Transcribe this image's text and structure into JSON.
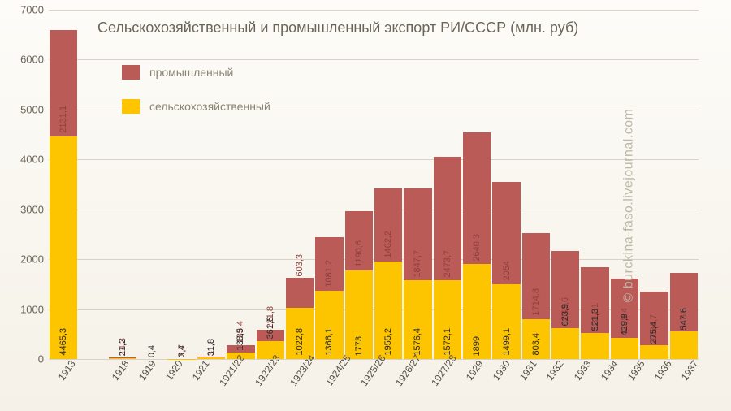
{
  "chart": {
    "type": "stacked-bar",
    "title": "Сельскохозяйственный и промышленный экспорт РИ/СССР (млн. руб)",
    "watermark": "© burckina-faso.livejournal.com",
    "background_gradient": [
      "#fdfcf8",
      "#f5f1e8"
    ],
    "grid_color": "#d8d3c5",
    "text_color": "#6b6558",
    "ylim": [
      0,
      7000
    ],
    "ytick_step": 1000,
    "yticks": [
      0,
      1000,
      2000,
      3000,
      4000,
      5000,
      6000,
      7000
    ],
    "categories": [
      "1913",
      "",
      "1918",
      "1919",
      "1920",
      "1921",
      "1921/22",
      "1922/23",
      "1923/24",
      "1924/25",
      "1925/26",
      "1926/27",
      "1927/28",
      "1929",
      "1930",
      "1931",
      "1932",
      "1933",
      "1934",
      "1935",
      "1936",
      "1937"
    ],
    "series": [
      {
        "name": "промышленный",
        "color": "#bb5b58",
        "label_color": "#8e3f3c"
      },
      {
        "name": "сельскохозяйственный",
        "color": "#fdc400",
        "label_color": "#2a2a2a"
      }
    ],
    "data": [
      {
        "cat": "1913",
        "agri": 4465.3,
        "ind": 2131.1,
        "agri_label": "4465,3",
        "ind_label": "2131,1"
      },
      {
        "cat": "",
        "agri": null,
        "ind": null,
        "agri_label": "",
        "ind_label": ""
      },
      {
        "cat": "1918",
        "agri": 21.2,
        "ind": 14.3,
        "agri_label": "21,2",
        "ind_label": "14,3"
      },
      {
        "cat": "1919",
        "agri": 0.4,
        "ind": 0,
        "agri_label": "0,4",
        "ind_label": "0"
      },
      {
        "cat": "1920",
        "agri": 3.4,
        "ind": 2.7,
        "agri_label": "3,4",
        "ind_label": "2,7"
      },
      {
        "cat": "1921",
        "agri": 31.8,
        "ind": 11.8,
        "agri_label": "31,8",
        "ind_label": "11,8"
      },
      {
        "cat": "1921/22",
        "agri": 138.5,
        "ind": 139.4,
        "agri_label": "138,5",
        "ind_label": "139,4"
      },
      {
        "cat": "1922/23",
        "agri": 361.6,
        "ind": 221.8,
        "agri_label": "361,6",
        "ind_label": "221,8"
      },
      {
        "cat": "1923/24",
        "agri": 1022.8,
        "ind": 603.3,
        "agri_label": "1022,8",
        "ind_label": "603,3"
      },
      {
        "cat": "1924/25",
        "agri": 1366.1,
        "ind": 1081.2,
        "agri_label": "1366,1",
        "ind_label": "1081,2"
      },
      {
        "cat": "1925/26",
        "agri": 1773,
        "ind": 1190.6,
        "agri_label": "1773",
        "ind_label": "1190,6"
      },
      {
        "cat": "1926/27",
        "agri": 1955.2,
        "ind": 1462.2,
        "agri_label": "1955,2",
        "ind_label": "1462,2"
      },
      {
        "cat": "1927/28",
        "agri": 1576.4,
        "ind": 1847.7,
        "agri_label": "1576,4",
        "ind_label": "1847,7"
      },
      {
        "cat": "1929",
        "agri": 1572.1,
        "ind": 2473.7,
        "agri_label": "1572,1",
        "ind_label": "2473,7"
      },
      {
        "cat": "1930",
        "agri": 1899,
        "ind": 2640.3,
        "agri_label": "1899",
        "ind_label": "2640,3"
      },
      {
        "cat": "1931",
        "agri": 1499.1,
        "ind": 2054,
        "agri_label": "1499,1",
        "ind_label": "2054"
      },
      {
        "cat": "1932",
        "agri": 803.4,
        "ind": 1714.8,
        "agri_label": "803,4",
        "ind_label": "1714,8"
      },
      {
        "cat": "1933",
        "agri": 623.9,
        "ind": 1543.6,
        "agri_label": "623,9",
        "ind_label": "1543,6"
      },
      {
        "cat": "1934",
        "agri": 521.3,
        "ind": 1311.1,
        "agri_label": "521,3",
        "ind_label": "1311,1"
      },
      {
        "cat": "1935",
        "agri": 429.9,
        "ind": 1179.4,
        "agri_label": "429,9",
        "ind_label": "1179,4"
      },
      {
        "cat": "1936",
        "agri": 275.4,
        "ind": 1083.7,
        "agri_label": "275,4",
        "ind_label": "1083,7"
      },
      {
        "cat": "1937",
        "agri": 547.6,
        "ind": 1181,
        "agri_label": "547,6",
        "ind_label": "1181"
      }
    ]
  }
}
